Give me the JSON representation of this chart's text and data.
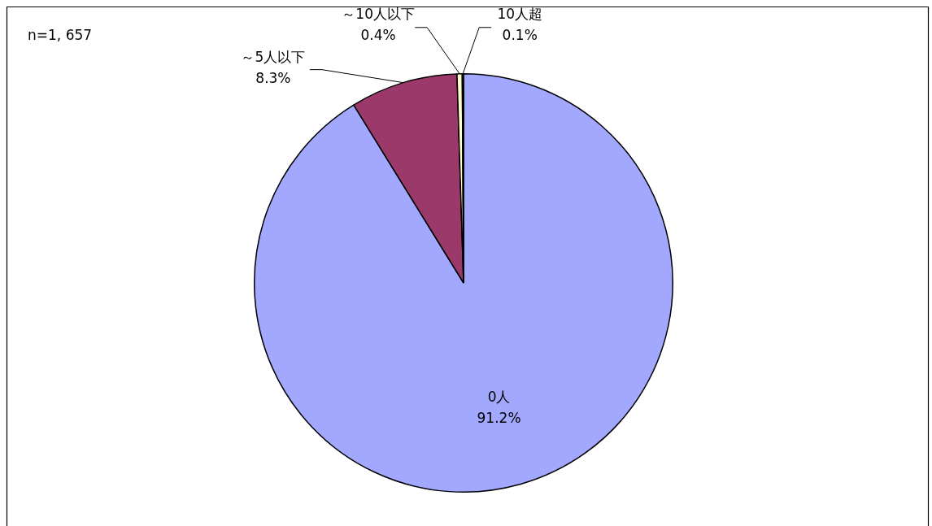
{
  "chart_data": {
    "type": "pie",
    "categories": [
      "0人",
      "～5人以下",
      "～10人以下",
      "10人超"
    ],
    "values": [
      91.2,
      8.3,
      0.4,
      0.1
    ],
    "colors": [
      "#a3a8ff",
      "#9b3a6a",
      "#ffffcc",
      "#ccffff"
    ],
    "value_labels": [
      "91.2%",
      "8.3%",
      "0.4%",
      "0.1%"
    ],
    "annotations": [
      "n=1, 657"
    ],
    "legend": false
  }
}
